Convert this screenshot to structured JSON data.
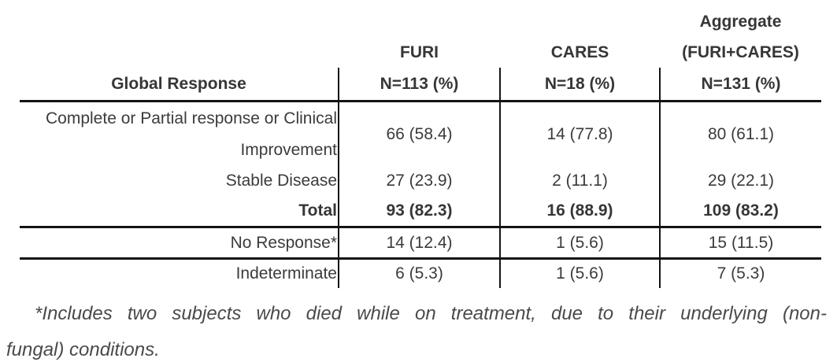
{
  "table": {
    "header": {
      "aggregate_top": "Aggregate",
      "col1_title": "Global Response",
      "col2_name": "FURI",
      "col3_name": "CARES",
      "col4_name": "(FURI+CARES)",
      "col2_n": "N=113 (%)",
      "col3_n": "N=18 (%)",
      "col4_n": "N=131 (%)"
    },
    "rows": [
      {
        "label": "Complete or Partial response or Clinical Improvement",
        "values": [
          "66 (58.4)",
          "14 (77.8)",
          "80 (61.1)"
        ]
      },
      {
        "label": "Stable Disease",
        "values": [
          "27 (23.9)",
          "2 (11.1)",
          "29 (22.1)"
        ]
      },
      {
        "label": "Total",
        "values": [
          "93 (82.3)",
          "16 (88.9)",
          "109 (83.2)"
        ]
      },
      {
        "label": "No Response*",
        "values": [
          "14 (12.4)",
          "1 (5.6)",
          "15 (11.5)"
        ]
      },
      {
        "label": "Indeterminate",
        "values": [
          "6 (5.3)",
          "1 (5.6)",
          "7 (5.3)"
        ]
      }
    ],
    "colors": {
      "line": "#141414",
      "text": "#3b3b3b"
    }
  },
  "footnote": {
    "line1": "*Includes two subjects who died while on treatment, due to their underlying (non-",
    "line2": "fungal) conditions."
  }
}
